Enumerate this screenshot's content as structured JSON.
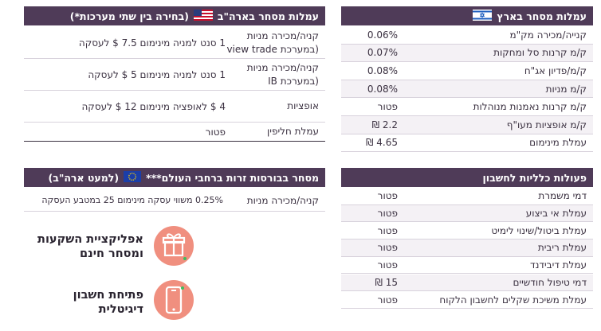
{
  "israel": {
    "title": "עמלות מסחר בארץ",
    "rows": [
      {
        "label": "קנייה/מכירה מק\"מ",
        "value": "0.06%"
      },
      {
        "label": "ק/מ קרנות סל ומחקות",
        "value": "0.07%"
      },
      {
        "label": "ק/מ/פדיון אג\"ח",
        "value": "0.08%"
      },
      {
        "label": "ק/מ מניות",
        "value": "0.08%"
      },
      {
        "label": "ק/מ קרנות נאמנות מנוהלות",
        "value": "פטור"
      },
      {
        "label": "ק/מ אופציות מעו\"ף",
        "value": "2.2 ₪"
      },
      {
        "label": "עמלת מינימום",
        "value": "4.65 ₪"
      }
    ]
  },
  "usa": {
    "title": "עמלות מסחר בארה\"ב",
    "note": "(בחירה בין שתי מערכות*)",
    "rows": [
      {
        "label1": "קניה/מכירה מניות",
        "label2": "(במערכת view trade",
        "value": "1 סנט למניה מינימום 7.5 $ לעסקה"
      },
      {
        "label1": "קניה/מכירה מניות",
        "label2": "(במערכת IB",
        "value": "1 סנט למניה מינימום 5 $ לעסקה"
      },
      {
        "label1": "אופציות",
        "label2": "",
        "value": "4 $ לאופציה מינימום 12 $ לעסקה"
      },
      {
        "label1": "עמלת חליפין",
        "label2": "",
        "value": "פטור"
      }
    ]
  },
  "world": {
    "title": "מסחר בבורסות זרות ברחבי העולם***",
    "note": "(למעט ארה\"ב)",
    "label": "קניה/מכירה מניות",
    "value": "0.25% משווי עסקה מינימום 25 במטבע העסקה"
  },
  "general": {
    "title": "פעולות כלליות לחשבון",
    "rows": [
      {
        "label": "דמי משמרת",
        "value": "פטור"
      },
      {
        "label": "עמלת אי ביצוע",
        "value": "פטור"
      },
      {
        "label": "עמלת ביטול/שינוי לימיט",
        "value": "פטור"
      },
      {
        "label": "עמלת ריבית",
        "value": "פטור"
      },
      {
        "label": "עמלת דיבידנד",
        "value": "פטור"
      },
      {
        "label": "דמי טיפול חודשיים",
        "value": "15 ₪"
      },
      {
        "label": "עמלת משיכת שקלים לחשבון הלקוח",
        "value": "פטור"
      }
    ]
  },
  "promos": [
    {
      "icon": "gift-icon",
      "line1": "אפליקציית השקעות",
      "line2": "ומסחר חינם"
    },
    {
      "icon": "smartphone-icon",
      "line1": "פתיחת חשבון",
      "line2": "דיגיטלית"
    }
  ],
  "colors": {
    "header": "#4f3b58",
    "accent": "#f08f7f",
    "text": "#3a3040"
  }
}
